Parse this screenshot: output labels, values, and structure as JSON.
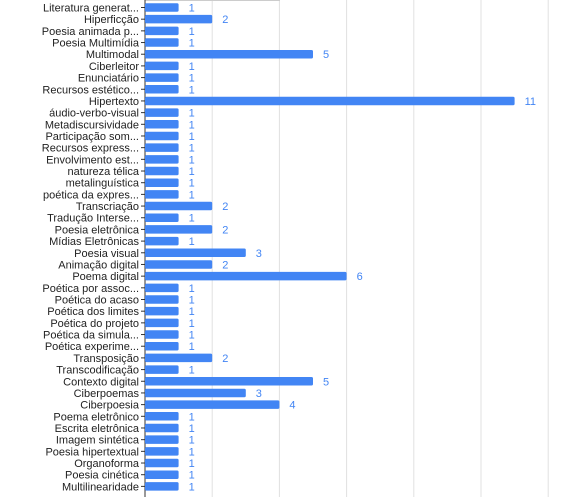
{
  "chart_data": {
    "type": "bar",
    "orientation": "horizontal",
    "categories": [
      "Literatura generat...",
      "Hiperficção",
      "Poesia animada p...",
      "Poesia Multimídia",
      "Multimodal",
      "Ciberleitor",
      "Enunciatário",
      "Recursos estético...",
      "Hipertexto",
      "áudio-verbo-visual",
      "Metadiscursividade",
      "Participação som...",
      "Recursos express...",
      "Envolvimento est...",
      "natureza télica",
      "metalinguística",
      "poética da expres...",
      "Transcriação",
      "Tradução Interse...",
      "Poesia eletrônica",
      "Mídias Eletrônicas",
      "Poesia visual",
      "Animação digital",
      "Poema digital",
      "Poética por assoc...",
      "Poética do acaso",
      "Poética dos limites",
      "Poética do projeto",
      "Poética da simula...",
      "Poética experime...",
      "Transposição",
      "Transcodificação",
      "Contexto digital",
      "Ciberpoemas",
      "Ciberpoesia",
      "Poema eletrônico",
      "Escrita eletrônica",
      "Imagem sintética",
      "Poesia hipertextual",
      "Organoforma",
      "Poesia cinética",
      "Multilinearidade"
    ],
    "values": [
      1,
      2,
      1,
      1,
      5,
      1,
      1,
      1,
      11,
      1,
      1,
      1,
      1,
      1,
      1,
      1,
      1,
      2,
      1,
      2,
      1,
      3,
      2,
      6,
      1,
      1,
      1,
      1,
      1,
      1,
      2,
      1,
      5,
      3,
      4,
      1,
      1,
      1,
      1,
      1,
      1,
      1
    ],
    "xlim": [
      0,
      12
    ],
    "grid": true,
    "data_labels": true,
    "bar_color": "#4285f4",
    "label_color": "#4285f4",
    "grid_color": "#e0e0e0",
    "text_color": "#222222"
  }
}
